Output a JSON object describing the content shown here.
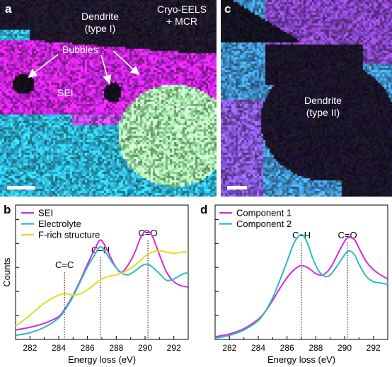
{
  "panel_a": {
    "label": "a",
    "annotations": {
      "dendrite_type1": "Dendrite\n(type I)",
      "method": "Cryo-EELS\n+ MCR",
      "bubbles": "Bubbles",
      "sei": "SEI"
    }
  },
  "panel_c": {
    "label": "c",
    "annotations": {
      "dendrite_type2": "Dendrite\n(type II)"
    }
  },
  "colors": {
    "magenta": "#d62ad6",
    "cyan": "#2bbcc0",
    "yellow": "#dede22",
    "white": "#ffffff"
  },
  "chart_data": [
    {
      "panel_label": "b",
      "type": "line",
      "xlabel": "Energy loss (eV)",
      "ylabel": "Counts",
      "xlim": [
        281,
        293
      ],
      "xticks": [
        282,
        284,
        286,
        288,
        290,
        292
      ],
      "yticks_count": 5,
      "legend_position": "top-left",
      "peak_annotations": [
        {
          "label": "C=C",
          "x": 284.4
        },
        {
          "label": "C–H",
          "x": 286.9
        },
        {
          "label": "C=O",
          "x": 290.2
        }
      ],
      "series": [
        {
          "name": "SEI",
          "color": "#d62ad6",
          "x": [
            281,
            282,
            283,
            284,
            284.5,
            285,
            285.5,
            286,
            286.5,
            286.9,
            287.3,
            287.8,
            288.3,
            288.8,
            289.3,
            289.7,
            290.1,
            290.5,
            291,
            291.5,
            292,
            292.5,
            293
          ],
          "y": [
            0.07,
            0.09,
            0.12,
            0.17,
            0.24,
            0.33,
            0.44,
            0.56,
            0.67,
            0.74,
            0.68,
            0.57,
            0.5,
            0.55,
            0.65,
            0.76,
            0.81,
            0.77,
            0.63,
            0.5,
            0.43,
            0.4,
            0.39
          ]
        },
        {
          "name": "Electrolyte",
          "color": "#2bbcc0",
          "x": [
            281,
            282,
            283,
            284,
            284.5,
            285,
            285.5,
            286,
            286.5,
            286.9,
            287.3,
            287.8,
            288.3,
            288.8,
            289.3,
            289.8,
            290.2,
            290.6,
            291,
            291.5,
            292,
            292.5,
            293
          ],
          "y": [
            0.03,
            0.05,
            0.09,
            0.16,
            0.23,
            0.32,
            0.43,
            0.54,
            0.63,
            0.69,
            0.64,
            0.56,
            0.5,
            0.48,
            0.51,
            0.55,
            0.56,
            0.53,
            0.49,
            0.44,
            0.45,
            0.48,
            0.5
          ]
        },
        {
          "name": "F-rich structure",
          "color": "#dede22",
          "x": [
            281,
            282,
            283,
            284,
            284.5,
            285,
            285.5,
            286,
            286.5,
            287,
            287.5,
            288,
            288.5,
            289,
            289.5,
            290,
            290.5,
            291,
            291.5,
            292,
            292.5,
            293
          ],
          "y": [
            0.1,
            0.18,
            0.27,
            0.33,
            0.34,
            0.33,
            0.34,
            0.37,
            0.41,
            0.45,
            0.47,
            0.48,
            0.5,
            0.53,
            0.57,
            0.62,
            0.65,
            0.66,
            0.65,
            0.64,
            0.65,
            0.65
          ]
        }
      ],
      "ylim": [
        0,
        1
      ]
    },
    {
      "panel_label": "d",
      "type": "line",
      "xlabel": "Energy loss (eV)",
      "ylabel": "Counts",
      "xlim": [
        281,
        293
      ],
      "xticks": [
        282,
        284,
        286,
        288,
        290,
        292
      ],
      "yticks_count": 5,
      "legend_position": "top-left",
      "peak_annotations": [
        {
          "label": "C–H",
          "x": 287.0
        },
        {
          "label": "C=O",
          "x": 290.2
        }
      ],
      "series": [
        {
          "name": "Component 1",
          "color": "#d62ad6",
          "x": [
            281,
            282,
            283,
            284,
            284.5,
            285,
            285.5,
            286,
            286.5,
            287,
            287.5,
            288,
            288.5,
            289,
            289.5,
            290,
            290.3,
            290.7,
            291,
            291.5,
            292,
            292.5,
            293
          ],
          "y": [
            0.02,
            0.04,
            0.08,
            0.15,
            0.21,
            0.29,
            0.38,
            0.46,
            0.52,
            0.55,
            0.53,
            0.49,
            0.48,
            0.53,
            0.63,
            0.73,
            0.76,
            0.74,
            0.68,
            0.58,
            0.52,
            0.48,
            0.45
          ]
        },
        {
          "name": "Component 2",
          "color": "#2bbcc0",
          "x": [
            281,
            282,
            283,
            284,
            284.5,
            285,
            285.5,
            286,
            286.5,
            287,
            287.4,
            287.8,
            288.2,
            288.6,
            289,
            289.5,
            290,
            290.3,
            290.7,
            291,
            291.5,
            292,
            292.5,
            293
          ],
          "y": [
            0.01,
            0.03,
            0.07,
            0.14,
            0.21,
            0.31,
            0.44,
            0.58,
            0.72,
            0.78,
            0.72,
            0.6,
            0.51,
            0.47,
            0.48,
            0.55,
            0.63,
            0.66,
            0.63,
            0.56,
            0.47,
            0.43,
            0.42,
            0.41
          ]
        }
      ],
      "ylim": [
        0,
        1
      ]
    }
  ]
}
